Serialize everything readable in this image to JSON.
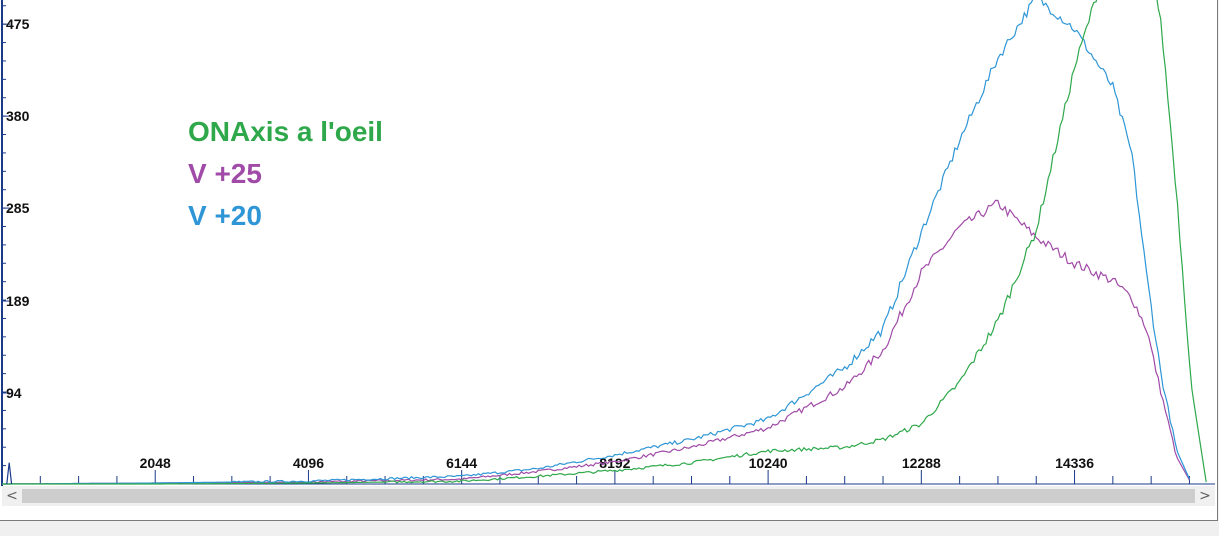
{
  "chart_data": {
    "type": "line",
    "title": "",
    "xlabel": "",
    "ylabel": "",
    "xlim": [
      0,
      16384
    ],
    "ylim": [
      0,
      570
    ],
    "x_ticks": [
      2048,
      4096,
      6144,
      8192,
      10240,
      12288,
      14336
    ],
    "y_ticks": [
      94,
      189,
      285,
      380,
      475
    ],
    "grid": false,
    "legend_position": "upper-left",
    "series": [
      {
        "name": "ONAxis a l'oeil",
        "color": "#2ea84a",
        "points": [
          [
            0,
            0
          ],
          [
            2048,
            0
          ],
          [
            4096,
            1
          ],
          [
            6144,
            3
          ],
          [
            7168,
            8
          ],
          [
            8192,
            14
          ],
          [
            9216,
            22
          ],
          [
            10240,
            34
          ],
          [
            11264,
            38
          ],
          [
            11776,
            46
          ],
          [
            12288,
            62
          ],
          [
            12800,
            105
          ],
          [
            13312,
            168
          ],
          [
            13824,
            262
          ],
          [
            14336,
            430
          ],
          [
            14848,
            560
          ],
          [
            15104,
            570
          ],
          [
            15300,
            570
          ],
          [
            15500,
            470
          ],
          [
            15700,
            300
          ],
          [
            15900,
            100
          ],
          [
            16100,
            0
          ]
        ]
      },
      {
        "name": "V +25",
        "color": "#a04ba7",
        "points": [
          [
            0,
            0
          ],
          [
            2048,
            1
          ],
          [
            4096,
            2
          ],
          [
            6144,
            5
          ],
          [
            7168,
            13
          ],
          [
            8192,
            23
          ],
          [
            9216,
            38
          ],
          [
            10240,
            58
          ],
          [
            11264,
            100
          ],
          [
            11776,
            138
          ],
          [
            12288,
            218
          ],
          [
            12800,
            265
          ],
          [
            13312,
            290
          ],
          [
            13824,
            255
          ],
          [
            14336,
            228
          ],
          [
            14848,
            210
          ],
          [
            15104,
            192
          ],
          [
            15300,
            160
          ],
          [
            15500,
            92
          ],
          [
            15700,
            28
          ],
          [
            15900,
            0
          ]
        ]
      },
      {
        "name": "V +20",
        "color": "#2e96d6",
        "points": [
          [
            0,
            0
          ],
          [
            2048,
            1
          ],
          [
            4096,
            3
          ],
          [
            6144,
            8
          ],
          [
            7168,
            16
          ],
          [
            8192,
            30
          ],
          [
            9216,
            46
          ],
          [
            10240,
            67
          ],
          [
            11264,
            120
          ],
          [
            11776,
            160
          ],
          [
            12288,
            260
          ],
          [
            12800,
            355
          ],
          [
            13312,
            440
          ],
          [
            13824,
            503
          ],
          [
            14336,
            470
          ],
          [
            14848,
            410
          ],
          [
            15104,
            340
          ],
          [
            15300,
            215
          ],
          [
            15500,
            110
          ],
          [
            15700,
            35
          ],
          [
            15900,
            0
          ]
        ]
      }
    ]
  },
  "scrollbar": {
    "left_arrow": "<",
    "right_arrow": ">"
  }
}
